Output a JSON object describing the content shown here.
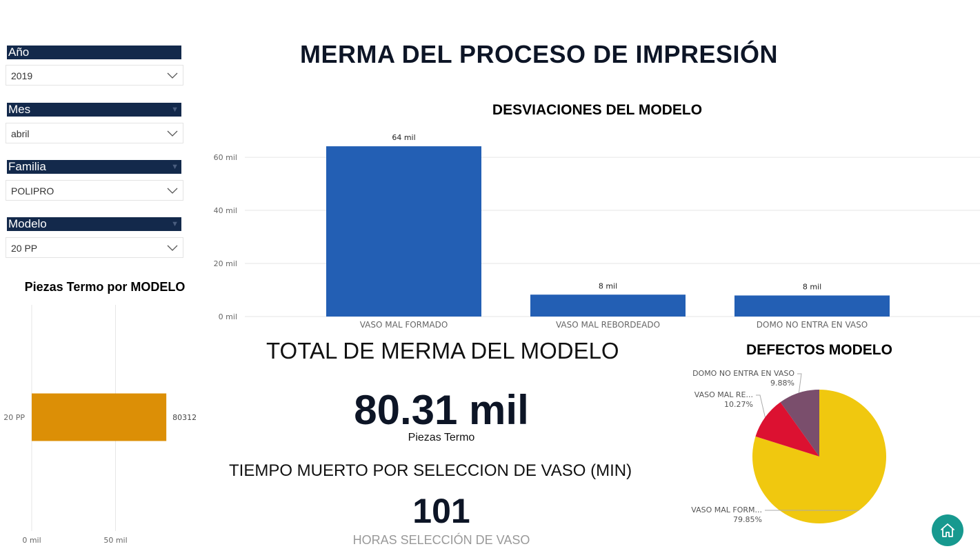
{
  "page_title": "MERMA DEL PROCESO DE IMPRESIÓN",
  "slicers": [
    {
      "label": "Año",
      "value": "2019"
    },
    {
      "label": "Mes",
      "value": "abril"
    },
    {
      "label": "Familia",
      "value": "POLIPRO"
    },
    {
      "label": "Modelo",
      "value": "20 PP"
    }
  ],
  "colors": {
    "slicer_header": "#13294b",
    "bar_blue": "#235fb4",
    "bar_orange": "#dc8f06",
    "pie_yellow": "#f0c80f",
    "pie_red": "#dc1131",
    "pie_purple": "#7a4e6c",
    "home_button": "#17998f"
  },
  "kpis": {
    "total_title": "TOTAL DE MERMA DEL MODELO",
    "total_value": "80.31 mil",
    "total_caption": "Piezas Termo",
    "tiempo_title": "TIEMPO MUERTO POR SELECCION DE VASO (MIN)",
    "tiempo_value": "101",
    "tiempo_caption": "HORAS SELECCIÓN DE VASO"
  },
  "home_button": {
    "icon": "home-icon"
  },
  "chart_data": [
    {
      "type": "bar",
      "title": "DESVIACIONES DEL MODELO",
      "categories": [
        "VASO MAL FORMADO",
        "VASO MAL REBORDEADO",
        "DOMO NO ENTRA EN VASO"
      ],
      "values": [
        64150,
        8250,
        7935
      ],
      "data_labels": [
        "64 mil",
        "8 mil",
        "8 mil"
      ],
      "ylim": [
        0,
        66000
      ],
      "y_ticks": [
        0,
        20000,
        40000,
        60000
      ],
      "y_tick_labels": [
        "0 mil",
        "20 mil",
        "40 mil",
        "60 mil"
      ],
      "grid": true
    },
    {
      "type": "bar",
      "orientation": "horizontal",
      "title": "Piezas Termo por MODELO",
      "categories": [
        "20 PP"
      ],
      "values": [
        80312
      ],
      "data_labels": [
        "80312"
      ],
      "xlim": [
        0,
        100000
      ],
      "x_ticks": [
        0,
        50000
      ],
      "x_tick_labels": [
        "0 mil",
        "50 mil"
      ],
      "grid": true
    },
    {
      "type": "pie",
      "title": "DEFECTOS MODELO",
      "labels": [
        "VASO MAL FORM...",
        "VASO MAL RE...",
        "DOMO NO ENTRA EN VASO"
      ],
      "values": [
        79.85,
        10.27,
        9.88
      ],
      "value_labels": [
        "79.85%",
        "10.27%",
        "9.88%"
      ]
    }
  ]
}
